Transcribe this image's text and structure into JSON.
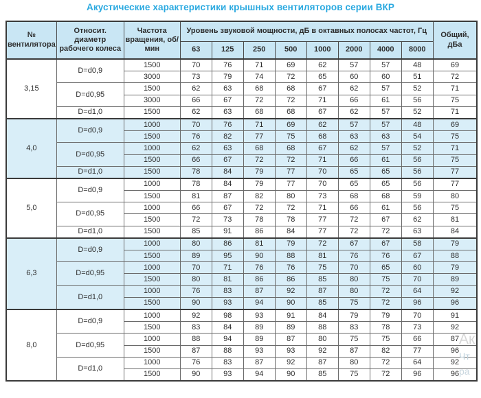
{
  "page": {
    "title": "Акустические характеристики крышных вентиляторов серии ВКР"
  },
  "colors": {
    "title_blue": "#2aa9e0",
    "header_bg": "#c9e6f4",
    "band_bg": "#d9eef8",
    "border_dark": "#3a3a3a",
    "border_inner": "#6a6a6a",
    "text": "#2d2d2d"
  },
  "watermark": {
    "line1": "Ак",
    "line2": "Чт",
    "line3": "ра"
  },
  "table": {
    "headers": {
      "fan": "№ вентилятора",
      "diameter": "Относит. диаметр рабочего колеса",
      "rpm": "Частота вращения, об/мин",
      "spl": "Уровень звуковой мощности, дБ в октавных полосах частот, Гц",
      "freqs": [
        "63",
        "125",
        "250",
        "500",
        "1000",
        "2000",
        "4000",
        "8000"
      ],
      "total": "Общий, дБа"
    },
    "groups": [
      {
        "fan": "3,15",
        "shaded": false,
        "subgroups": [
          {
            "diameter": "D=d0,9",
            "rows": [
              {
                "rpm": "1500",
                "values": [
                  70,
                  76,
                  71,
                  69,
                  62,
                  57,
                  57,
                  48
                ],
                "total": 69
              },
              {
                "rpm": "3000",
                "values": [
                  73,
                  79,
                  74,
                  72,
                  65,
                  60,
                  60,
                  51
                ],
                "total": 72
              }
            ]
          },
          {
            "diameter": "D=d0,95",
            "rows": [
              {
                "rpm": "1500",
                "values": [
                  62,
                  63,
                  68,
                  68,
                  67,
                  62,
                  57,
                  52
                ],
                "total": 71
              },
              {
                "rpm": "3000",
                "values": [
                  66,
                  67,
                  72,
                  72,
                  71,
                  66,
                  61,
                  56
                ],
                "total": 75
              }
            ]
          },
          {
            "diameter": "D=d1,0",
            "rows": [
              {
                "rpm": "1500",
                "values": [
                  62,
                  63,
                  68,
                  68,
                  67,
                  62,
                  57,
                  52
                ],
                "total": 71
              }
            ]
          }
        ]
      },
      {
        "fan": "4,0",
        "shaded": true,
        "subgroups": [
          {
            "diameter": "D=d0,9",
            "rows": [
              {
                "rpm": "1000",
                "values": [
                  70,
                  76,
                  71,
                  69,
                  62,
                  57,
                  57,
                  48
                ],
                "total": 69
              },
              {
                "rpm": "1500",
                "values": [
                  76,
                  82,
                  77,
                  75,
                  68,
                  63,
                  63,
                  54
                ],
                "total": 75
              }
            ]
          },
          {
            "diameter": "D=d0,95",
            "rows": [
              {
                "rpm": "1000",
                "values": [
                  62,
                  63,
                  68,
                  68,
                  67,
                  62,
                  57,
                  52
                ],
                "total": 71
              },
              {
                "rpm": "1500",
                "values": [
                  66,
                  67,
                  72,
                  72,
                  71,
                  66,
                  61,
                  56
                ],
                "total": 75
              }
            ]
          },
          {
            "diameter": "D=d1,0",
            "rows": [
              {
                "rpm": "1500",
                "values": [
                  78,
                  84,
                  79,
                  77,
                  70,
                  65,
                  65,
                  56
                ],
                "total": 77
              }
            ]
          }
        ]
      },
      {
        "fan": "5,0",
        "shaded": false,
        "subgroups": [
          {
            "diameter": "D=d0,9",
            "rows": [
              {
                "rpm": "1000",
                "values": [
                  78,
                  84,
                  79,
                  77,
                  70,
                  65,
                  65,
                  56
                ],
                "total": 77
              },
              {
                "rpm": "1500",
                "values": [
                  81,
                  87,
                  82,
                  80,
                  73,
                  68,
                  68,
                  59
                ],
                "total": 80
              }
            ]
          },
          {
            "diameter": "D=d0,95",
            "rows": [
              {
                "rpm": "1000",
                "values": [
                  66,
                  67,
                  72,
                  72,
                  71,
                  66,
                  61,
                  56
                ],
                "total": 75
              },
              {
                "rpm": "1500",
                "values": [
                  72,
                  73,
                  78,
                  78,
                  77,
                  72,
                  67,
                  62
                ],
                "total": 81
              }
            ]
          },
          {
            "diameter": "D=d1,0",
            "rows": [
              {
                "rpm": "1500",
                "values": [
                  85,
                  91,
                  86,
                  84,
                  77,
                  72,
                  72,
                  63
                ],
                "total": 84
              }
            ]
          }
        ]
      },
      {
        "fan": "6,3",
        "shaded": true,
        "subgroups": [
          {
            "diameter": "D=d0,9",
            "rows": [
              {
                "rpm": "1000",
                "values": [
                  80,
                  86,
                  81,
                  79,
                  72,
                  67,
                  67,
                  58
                ],
                "total": 79
              },
              {
                "rpm": "1500",
                "values": [
                  89,
                  95,
                  90,
                  88,
                  81,
                  76,
                  76,
                  67
                ],
                "total": 88
              }
            ]
          },
          {
            "diameter": "D=d0,95",
            "rows": [
              {
                "rpm": "1000",
                "values": [
                  70,
                  71,
                  76,
                  76,
                  75,
                  70,
                  65,
                  60
                ],
                "total": 79
              },
              {
                "rpm": "1500",
                "values": [
                  80,
                  81,
                  86,
                  86,
                  85,
                  80,
                  75,
                  70
                ],
                "total": 89
              }
            ]
          },
          {
            "diameter": "D=d1,0",
            "rows": [
              {
                "rpm": "1000",
                "values": [
                  76,
                  83,
                  87,
                  92,
                  87,
                  80,
                  72,
                  64
                ],
                "total": 92
              },
              {
                "rpm": "1500",
                "values": [
                  90,
                  93,
                  94,
                  90,
                  85,
                  75,
                  72,
                  96
                ],
                "total": 96
              }
            ]
          }
        ]
      },
      {
        "fan": "8,0",
        "shaded": false,
        "subgroups": [
          {
            "diameter": "D=d0,9",
            "rows": [
              {
                "rpm": "1000",
                "values": [
                  92,
                  98,
                  93,
                  91,
                  84,
                  79,
                  79,
                  70
                ],
                "total": 91
              },
              {
                "rpm": "1500",
                "values": [
                  83,
                  84,
                  89,
                  89,
                  88,
                  83,
                  78,
                  73
                ],
                "total": 92
              }
            ]
          },
          {
            "diameter": "D=d0,95",
            "rows": [
              {
                "rpm": "1000",
                "values": [
                  88,
                  94,
                  89,
                  87,
                  80,
                  75,
                  75,
                  66
                ],
                "total": 87
              },
              {
                "rpm": "1500",
                "values": [
                  87,
                  88,
                  93,
                  93,
                  92,
                  87,
                  82,
                  77
                ],
                "total": 96
              }
            ]
          },
          {
            "diameter": "D=d1,0",
            "rows": [
              {
                "rpm": "1000",
                "values": [
                  76,
                  83,
                  87,
                  92,
                  87,
                  80,
                  72,
                  64
                ],
                "total": 92
              },
              {
                "rpm": "1500",
                "values": [
                  90,
                  93,
                  94,
                  90,
                  85,
                  75,
                  72,
                  96
                ],
                "total": 96
              }
            ]
          }
        ]
      }
    ]
  }
}
